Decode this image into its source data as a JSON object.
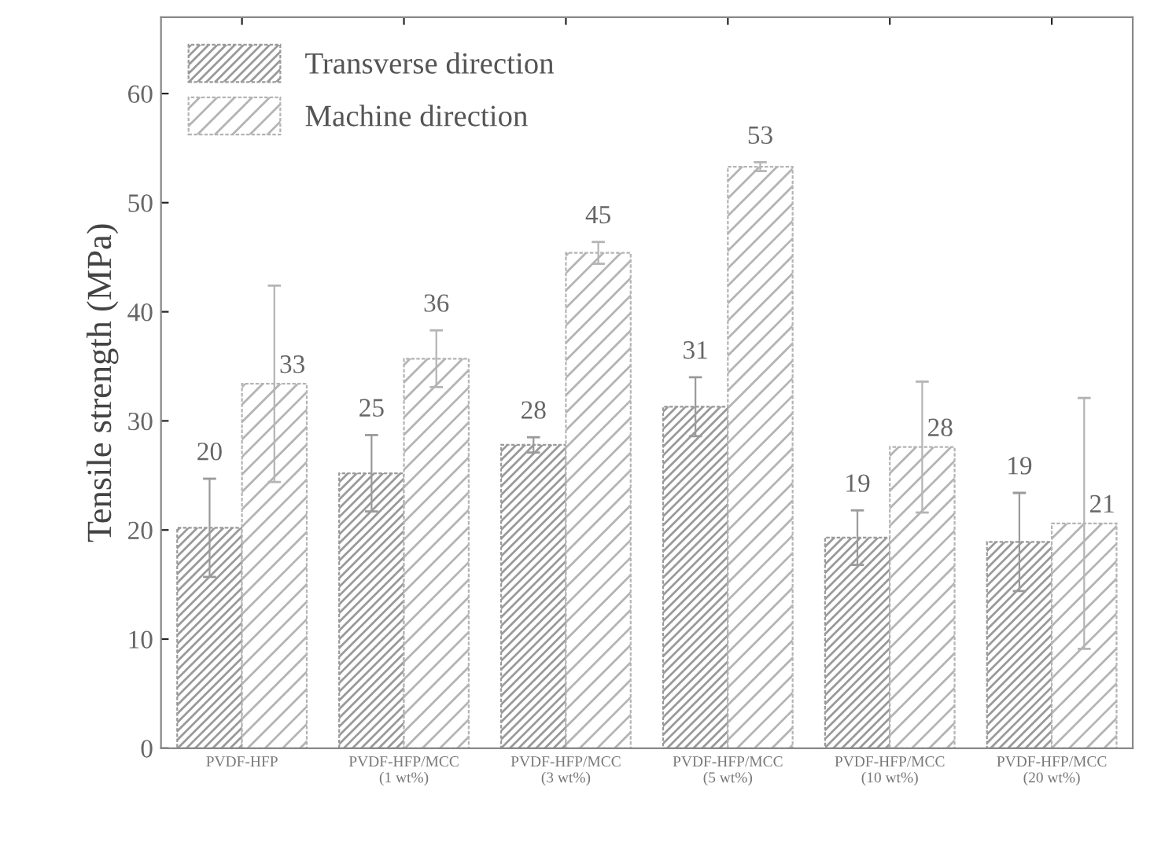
{
  "chart_data": {
    "type": "bar",
    "ylabel": "Tensile strength (MPa)",
    "categories": [
      "PVDF-HFP",
      "PVDF-HFP/MCC\n(1 wt%)",
      "PVDF-HFP/MCC\n(3 wt%)",
      "PVDF-HFP/MCC\n(5 wt%)",
      "PVDF-HFP/MCC\n(10 wt%)",
      "PVDF-HFP/MCC\n(20 wt%)"
    ],
    "series": [
      {
        "name": "Transverse direction",
        "color": "#9a9a9a",
        "values": [
          20.2,
          25.2,
          27.8,
          31.3,
          19.3,
          18.9
        ],
        "errors": [
          4.5,
          3.5,
          0.7,
          2.7,
          2.5,
          4.5
        ],
        "value_labels": [
          "20",
          "25",
          "28",
          "31",
          "19",
          "19"
        ]
      },
      {
        "name": "Machine direction",
        "color": "#b4b4b4",
        "values": [
          33.4,
          35.7,
          45.4,
          53.3,
          27.6,
          20.6
        ],
        "errors": [
          9,
          2.6,
          1,
          0.4,
          6,
          11.5
        ],
        "value_labels": [
          "33",
          "36",
          "45",
          "53",
          "28",
          "21"
        ]
      }
    ],
    "ylim": [
      0,
      67
    ],
    "yticks": [
      0,
      10,
      20,
      30,
      40,
      50,
      60
    ],
    "legend": "top left",
    "grid": false
  }
}
